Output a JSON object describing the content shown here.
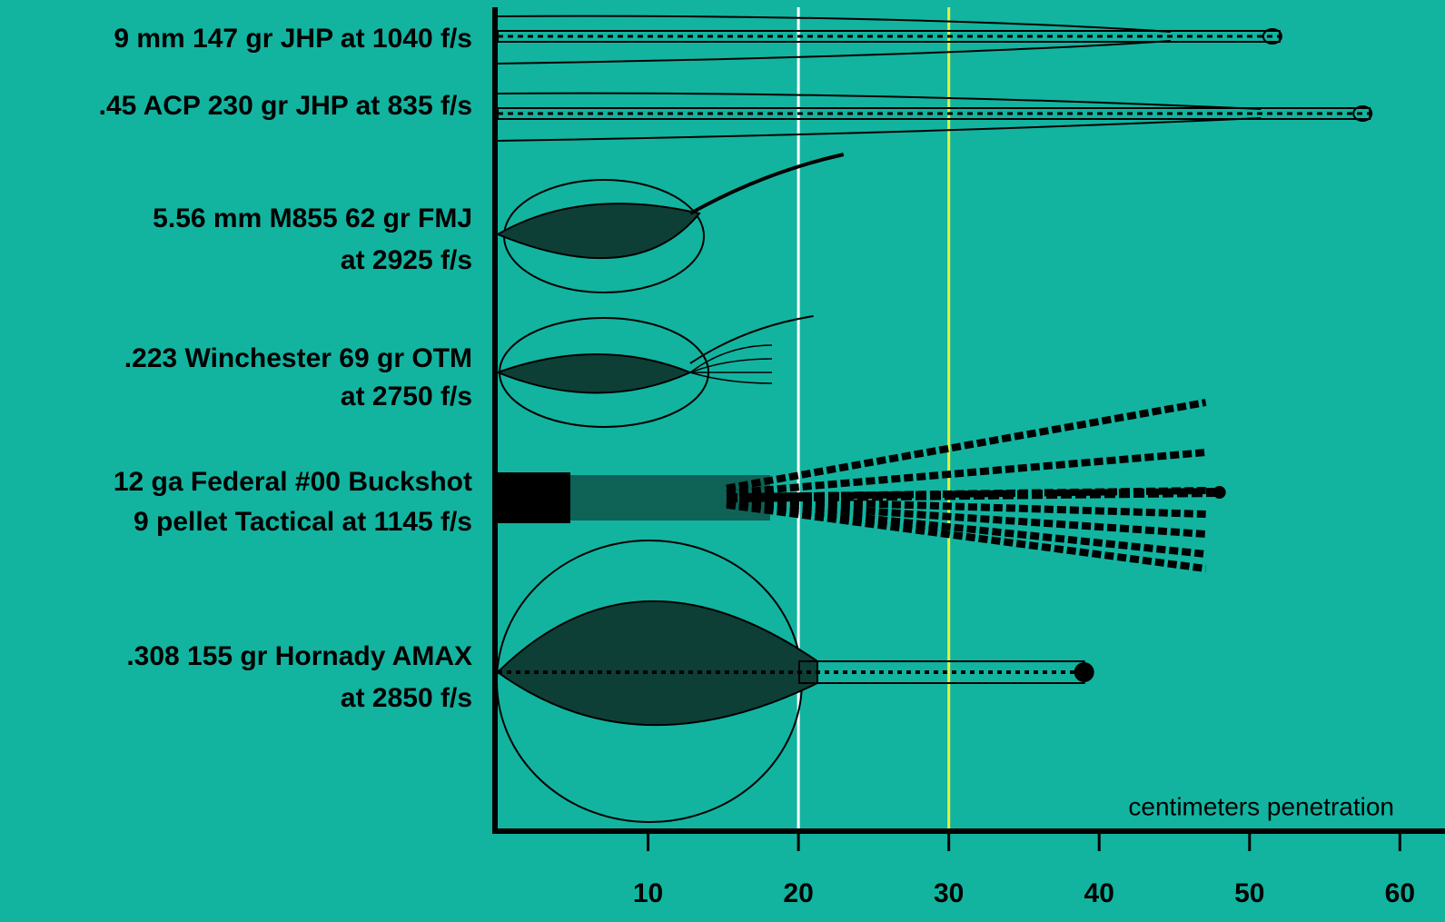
{
  "chart_data": {
    "type": "wound-profile",
    "x_label": "centimeters penetration",
    "categories": [
      [
        "9 mm 147 gr JHP at 1040 f/s"
      ],
      [
        ".45 ACP 230 gr JHP at 835 f/s"
      ],
      [
        "5.56 mm M855 62 gr FMJ",
        "at 2925 f/s"
      ],
      [
        ".223 Winchester 69 gr OTM",
        "at 2750 f/s"
      ],
      [
        "12 ga Federal #00 Buckshot",
        "9 pellet Tactical at 1145 f/s"
      ],
      [
        ".308 155 gr Hornady AMAX",
        "at 2850 f/s"
      ]
    ],
    "values": [
      52,
      58,
      23,
      21,
      48,
      39
    ],
    "color": "#000000",
    "xlim": [
      0,
      63
    ],
    "xticks": [
      10,
      20,
      30,
      40,
      50,
      60
    ],
    "reference_lines": [
      {
        "value": 20,
        "color": "#ffffff"
      },
      {
        "value": 30,
        "color": "#e6f03c"
      }
    ]
  }
}
